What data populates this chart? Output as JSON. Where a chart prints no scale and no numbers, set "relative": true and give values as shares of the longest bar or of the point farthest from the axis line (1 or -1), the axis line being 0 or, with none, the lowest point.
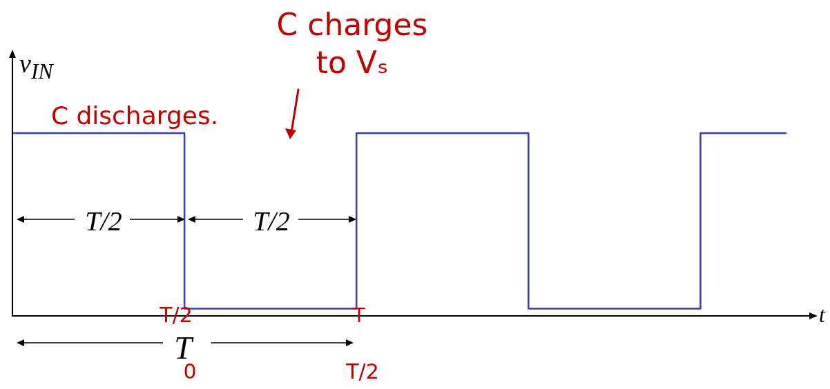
{
  "chart_data": {
    "type": "step",
    "relative": true,
    "color": "#3c3ca6",
    "ylabel": "v$_{IN}$",
    "xlabel": "t",
    "categories": [
      null,
      null,
      null,
      null,
      null,
      null,
      null,
      null,
      null,
      null
    ],
    "values": [
      1,
      1,
      0.04,
      0.04,
      1,
      1,
      0.04,
      0.04,
      1,
      1
    ],
    "annotations": [
      "C charges to Vₛ",
      "C discharges.",
      "T/2",
      "T/2",
      "T",
      "T/2",
      "T",
      "0",
      "T/2"
    ]
  }
}
